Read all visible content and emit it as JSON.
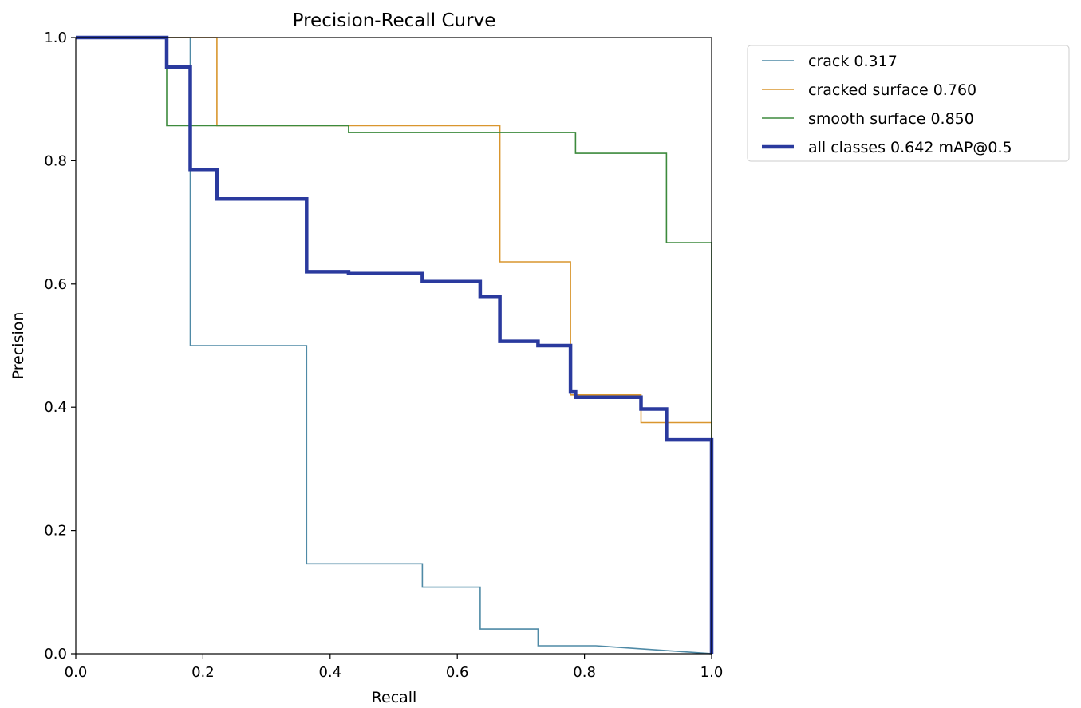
{
  "chart_data": {
    "type": "line",
    "title": "Precision-Recall Curve",
    "xlabel": "Recall",
    "ylabel": "Precision",
    "xlim": [
      0,
      1
    ],
    "ylim": [
      0,
      1
    ],
    "xticks": [
      "0.0",
      "0.2",
      "0.4",
      "0.6",
      "0.8",
      "1.0"
    ],
    "yticks": [
      "0.0",
      "0.2",
      "0.4",
      "0.6",
      "0.8",
      "1.0"
    ],
    "grid": false,
    "legend_position": "outside-right-top",
    "series": [
      {
        "name": "crack 0.317",
        "color": "#4f8aa6",
        "width": "thin",
        "x": [
          0,
          0.18,
          0.18,
          0.363,
          0.363,
          0.545,
          0.545,
          0.636,
          0.636,
          0.727,
          0.727,
          0.818,
          1.0,
          1.0
        ],
        "y": [
          1.0,
          1.0,
          0.5,
          0.5,
          0.146,
          0.146,
          0.108,
          0.108,
          0.04,
          0.04,
          0.013,
          0.013,
          0.0,
          0.0
        ]
      },
      {
        "name": "cracked surface 0.760",
        "color": "#d9962e",
        "width": "thin",
        "x": [
          0,
          0.222,
          0.222,
          0.667,
          0.667,
          0.778,
          0.778,
          0.889,
          0.889,
          1.0,
          1.0
        ],
        "y": [
          1.0,
          1.0,
          0.857,
          0.857,
          0.636,
          0.636,
          0.42,
          0.42,
          0.375,
          0.375,
          0.0
        ]
      },
      {
        "name": "smooth surface 0.850",
        "color": "#3d8a3d",
        "width": "thin",
        "x": [
          0,
          0.143,
          0.143,
          0.429,
          0.429,
          0.786,
          0.786,
          0.929,
          0.929,
          1.0,
          1.0
        ],
        "y": [
          1.0,
          1.0,
          0.857,
          0.857,
          0.846,
          0.846,
          0.812,
          0.812,
          0.667,
          0.667,
          0.0
        ]
      },
      {
        "name": "all classes 0.642 mAP@0.5",
        "color": "#2a3a9e",
        "width": "thick",
        "x": [
          0,
          0.143,
          0.143,
          0.18,
          0.18,
          0.222,
          0.222,
          0.363,
          0.363,
          0.429,
          0.429,
          0.545,
          0.545,
          0.636,
          0.636,
          0.667,
          0.667,
          0.727,
          0.727,
          0.778,
          0.778,
          0.786,
          0.786,
          0.889,
          0.889,
          0.929,
          0.929,
          1.0,
          1.0
        ],
        "y": [
          1.0,
          1.0,
          0.952,
          0.952,
          0.786,
          0.786,
          0.738,
          0.738,
          0.62,
          0.62,
          0.617,
          0.617,
          0.604,
          0.604,
          0.58,
          0.58,
          0.507,
          0.507,
          0.5,
          0.5,
          0.426,
          0.426,
          0.416,
          0.416,
          0.397,
          0.397,
          0.347,
          0.347,
          0.0
        ]
      }
    ]
  }
}
